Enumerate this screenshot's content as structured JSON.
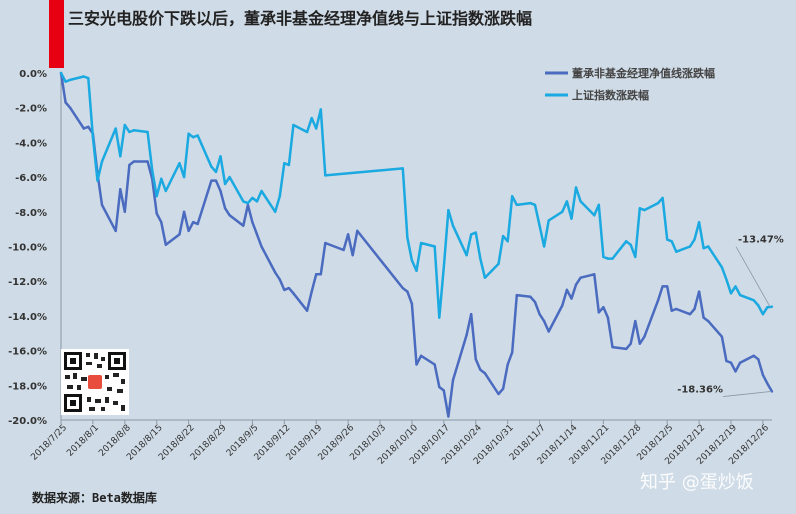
{
  "header": {
    "title": "三安光电股价下跌以后，董承非基金经理净值线与上证指数涨跌幅"
  },
  "footer": {
    "source": "数据来源：Beta数据库",
    "watermark": "知乎 @蛋炒饭"
  },
  "colors": {
    "background": "#cfdbe6",
    "accent_bar": "#e60012",
    "fund_line": "#4a6bbf",
    "index_line": "#1aa9e0"
  },
  "chart_data": {
    "type": "line",
    "title": "三安光电股价下跌以后，董承非基金经理净值线与上证指数涨跌幅",
    "xlabel": "",
    "ylabel": "",
    "ylim": [
      -20,
      0
    ],
    "yticks": [
      "0.0%",
      "-2.0%",
      "-4.0%",
      "-6.0%",
      "-8.0%",
      "-10.0%",
      "-12.0%",
      "-14.0%",
      "-16.0%",
      "-18.0%",
      "-20.0%"
    ],
    "xticks": [
      "2018/7/25",
      "2018/8/1",
      "2018/8/8",
      "2018/8/15",
      "2018/8/22",
      "2018/8/29",
      "2018/9/5",
      "2018/9/12",
      "2018/9/19",
      "2018/9/26",
      "2018/10/3",
      "2018/10/10",
      "2018/10/17",
      "2018/10/24",
      "2018/10/31",
      "2018/11/7",
      "2018/11/14",
      "2018/11/21",
      "2018/11/28",
      "2018/12/5",
      "2018/12/12",
      "2018/12/19",
      "2018/12/26"
    ],
    "x_domain": [
      "2018/7/25",
      "2018/12/28"
    ],
    "grid": false,
    "legend": "top-right",
    "series": [
      {
        "name": "董承非基金经理净值线涨跌幅",
        "color": "#4a6bbf",
        "end_label": "-18.36%",
        "points": [
          [
            "2018/7/25",
            0.0
          ],
          [
            "2018/7/26",
            -1.7
          ],
          [
            "2018/7/27",
            -2.0
          ],
          [
            "2018/7/30",
            -3.2
          ],
          [
            "2018/7/31",
            -3.1
          ],
          [
            "2018/8/1",
            -3.5
          ],
          [
            "2018/8/2",
            -5.8
          ],
          [
            "2018/8/3",
            -7.6
          ],
          [
            "2018/8/6",
            -9.1
          ],
          [
            "2018/8/7",
            -6.7
          ],
          [
            "2018/8/8",
            -8.0
          ],
          [
            "2018/8/9",
            -5.3
          ],
          [
            "2018/8/10",
            -5.1
          ],
          [
            "2018/8/13",
            -5.1
          ],
          [
            "2018/8/14",
            -6.1
          ],
          [
            "2018/8/15",
            -8.1
          ],
          [
            "2018/8/16",
            -8.6
          ],
          [
            "2018/8/17",
            -9.9
          ],
          [
            "2018/8/20",
            -9.3
          ],
          [
            "2018/8/21",
            -8.0
          ],
          [
            "2018/8/22",
            -9.1
          ],
          [
            "2018/8/23",
            -8.6
          ],
          [
            "2018/8/24",
            -8.7
          ],
          [
            "2018/8/27",
            -6.2
          ],
          [
            "2018/8/28",
            -6.2
          ],
          [
            "2018/8/29",
            -6.8
          ],
          [
            "2018/8/30",
            -7.8
          ],
          [
            "2018/8/31",
            -8.2
          ],
          [
            "2018/9/3",
            -8.8
          ],
          [
            "2018/9/4",
            -7.6
          ],
          [
            "2018/9/5",
            -8.6
          ],
          [
            "2018/9/6",
            -9.3
          ],
          [
            "2018/9/7",
            -10.0
          ],
          [
            "2018/9/10",
            -11.5
          ],
          [
            "2018/9/11",
            -11.9
          ],
          [
            "2018/9/12",
            -12.5
          ],
          [
            "2018/9/13",
            -12.4
          ],
          [
            "2018/9/14",
            -12.7
          ],
          [
            "2018/9/17",
            -13.7
          ],
          [
            "2018/9/18",
            -12.6
          ],
          [
            "2018/9/19",
            -11.6
          ],
          [
            "2018/9/20",
            -11.6
          ],
          [
            "2018/9/21",
            -9.8
          ],
          [
            "2018/9/25",
            -10.2
          ],
          [
            "2018/9/26",
            -9.3
          ],
          [
            "2018/9/27",
            -10.5
          ],
          [
            "2018/9/28",
            -9.1
          ],
          [
            "2018/10/8",
            -12.4
          ],
          [
            "2018/10/9",
            -12.6
          ],
          [
            "2018/10/10",
            -13.3
          ],
          [
            "2018/10/11",
            -16.8
          ],
          [
            "2018/10/12",
            -16.3
          ],
          [
            "2018/10/15",
            -16.8
          ],
          [
            "2018/10/16",
            -18.1
          ],
          [
            "2018/10/17",
            -18.3
          ],
          [
            "2018/10/18",
            -19.8
          ],
          [
            "2018/10/19",
            -17.7
          ],
          [
            "2018/10/22",
            -15.1
          ],
          [
            "2018/10/23",
            -13.9
          ],
          [
            "2018/10/24",
            -16.5
          ],
          [
            "2018/10/25",
            -17.1
          ],
          [
            "2018/10/26",
            -17.3
          ],
          [
            "2018/10/29",
            -18.5
          ],
          [
            "2018/10/30",
            -18.2
          ],
          [
            "2018/10/31",
            -16.8
          ],
          [
            "2018/11/1",
            -16.1
          ],
          [
            "2018/11/2",
            -12.8
          ],
          [
            "2018/11/5",
            -12.9
          ],
          [
            "2018/11/6",
            -13.2
          ],
          [
            "2018/11/7",
            -13.9
          ],
          [
            "2018/11/8",
            -14.3
          ],
          [
            "2018/11/9",
            -14.9
          ],
          [
            "2018/11/12",
            -13.4
          ],
          [
            "2018/11/13",
            -12.5
          ],
          [
            "2018/11/14",
            -13.0
          ],
          [
            "2018/11/15",
            -12.2
          ],
          [
            "2018/11/16",
            -11.8
          ],
          [
            "2018/11/19",
            -11.6
          ],
          [
            "2018/11/20",
            -13.8
          ],
          [
            "2018/11/21",
            -13.5
          ],
          [
            "2018/11/22",
            -14.1
          ],
          [
            "2018/11/23",
            -15.8
          ],
          [
            "2018/11/26",
            -15.9
          ],
          [
            "2018/11/27",
            -15.6
          ],
          [
            "2018/11/28",
            -14.3
          ],
          [
            "2018/11/29",
            -15.6
          ],
          [
            "2018/11/30",
            -15.2
          ],
          [
            "2018/12/3",
            -13.1
          ],
          [
            "2018/12/4",
            -12.3
          ],
          [
            "2018/12/5",
            -12.3
          ],
          [
            "2018/12/6",
            -13.7
          ],
          [
            "2018/12/7",
            -13.6
          ],
          [
            "2018/12/10",
            -13.9
          ],
          [
            "2018/12/11",
            -13.6
          ],
          [
            "2018/12/12",
            -12.6
          ],
          [
            "2018/12/13",
            -14.1
          ],
          [
            "2018/12/14",
            -14.3
          ],
          [
            "2018/12/17",
            -15.2
          ],
          [
            "2018/12/18",
            -16.6
          ],
          [
            "2018/12/19",
            -16.7
          ],
          [
            "2018/12/20",
            -17.2
          ],
          [
            "2018/12/21",
            -16.7
          ],
          [
            "2018/12/24",
            -16.3
          ],
          [
            "2018/12/25",
            -16.5
          ],
          [
            "2018/12/26",
            -17.4
          ],
          [
            "2018/12/27",
            -17.9
          ],
          [
            "2018/12/28",
            -18.36
          ]
        ]
      },
      {
        "name": "上证指数涨跌幅",
        "color": "#1aa9e0",
        "end_label": "-13.47%",
        "points": [
          [
            "2018/7/25",
            0.0
          ],
          [
            "2018/7/26",
            -0.5
          ],
          [
            "2018/7/27",
            -0.4
          ],
          [
            "2018/7/30",
            -0.2
          ],
          [
            "2018/7/31",
            -0.3
          ],
          [
            "2018/8/1",
            -3.7
          ],
          [
            "2018/8/2",
            -6.2
          ],
          [
            "2018/8/3",
            -5.1
          ],
          [
            "2018/8/6",
            -3.2
          ],
          [
            "2018/8/7",
            -4.8
          ],
          [
            "2018/8/8",
            -3.0
          ],
          [
            "2018/8/9",
            -3.4
          ],
          [
            "2018/8/10",
            -3.3
          ],
          [
            "2018/8/13",
            -3.4
          ],
          [
            "2018/8/14",
            -5.6
          ],
          [
            "2018/8/15",
            -7.1
          ],
          [
            "2018/8/16",
            -6.1
          ],
          [
            "2018/8/17",
            -6.8
          ],
          [
            "2018/8/20",
            -5.2
          ],
          [
            "2018/8/21",
            -6.0
          ],
          [
            "2018/8/22",
            -3.5
          ],
          [
            "2018/8/23",
            -3.7
          ],
          [
            "2018/8/24",
            -3.6
          ],
          [
            "2018/8/27",
            -5.4
          ],
          [
            "2018/8/28",
            -5.7
          ],
          [
            "2018/8/29",
            -4.8
          ],
          [
            "2018/8/30",
            -6.4
          ],
          [
            "2018/8/31",
            -6.0
          ],
          [
            "2018/9/3",
            -7.4
          ],
          [
            "2018/9/4",
            -7.5
          ],
          [
            "2018/9/5",
            -7.2
          ],
          [
            "2018/9/6",
            -7.4
          ],
          [
            "2018/9/7",
            -6.8
          ],
          [
            "2018/9/10",
            -8.0
          ],
          [
            "2018/9/11",
            -7.1
          ],
          [
            "2018/9/12",
            -5.2
          ],
          [
            "2018/9/13",
            -5.3
          ],
          [
            "2018/9/14",
            -3.0
          ],
          [
            "2018/9/17",
            -3.4
          ],
          [
            "2018/9/18",
            -2.6
          ],
          [
            "2018/9/19",
            -3.2
          ],
          [
            "2018/9/20",
            -2.1
          ],
          [
            "2018/9/21",
            -5.9
          ],
          [
            "2018/10/8",
            -5.5
          ],
          [
            "2018/10/9",
            -9.5
          ],
          [
            "2018/10/10",
            -10.8
          ],
          [
            "2018/10/11",
            -11.4
          ],
          [
            "2018/10/12",
            -9.8
          ],
          [
            "2018/10/15",
            -10.0
          ],
          [
            "2018/10/16",
            -14.1
          ],
          [
            "2018/10/17",
            -11.2
          ],
          [
            "2018/10/18",
            -7.9
          ],
          [
            "2018/10/19",
            -8.8
          ],
          [
            "2018/10/22",
            -10.5
          ],
          [
            "2018/10/23",
            -9.3
          ],
          [
            "2018/10/24",
            -9.2
          ],
          [
            "2018/10/25",
            -10.7
          ],
          [
            "2018/10/26",
            -11.8
          ],
          [
            "2018/10/29",
            -11.0
          ],
          [
            "2018/10/30",
            -9.4
          ],
          [
            "2018/10/31",
            -9.7
          ],
          [
            "2018/11/1",
            -7.1
          ],
          [
            "2018/11/2",
            -7.6
          ],
          [
            "2018/11/5",
            -7.5
          ],
          [
            "2018/11/6",
            -7.6
          ],
          [
            "2018/11/7",
            -8.8
          ],
          [
            "2018/11/8",
            -10.0
          ],
          [
            "2018/11/9",
            -8.5
          ],
          [
            "2018/11/12",
            -8.0
          ],
          [
            "2018/11/13",
            -7.4
          ],
          [
            "2018/11/14",
            -8.4
          ],
          [
            "2018/11/15",
            -6.6
          ],
          [
            "2018/11/16",
            -7.4
          ],
          [
            "2018/11/19",
            -8.2
          ],
          [
            "2018/11/20",
            -7.6
          ],
          [
            "2018/11/21",
            -10.6
          ],
          [
            "2018/11/22",
            -10.7
          ],
          [
            "2018/11/23",
            -10.7
          ],
          [
            "2018/11/26",
            -9.7
          ],
          [
            "2018/11/27",
            -9.9
          ],
          [
            "2018/11/28",
            -10.6
          ],
          [
            "2018/11/29",
            -7.8
          ],
          [
            "2018/11/30",
            -7.9
          ],
          [
            "2018/12/3",
            -7.5
          ],
          [
            "2018/12/4",
            -7.2
          ],
          [
            "2018/12/5",
            -9.6
          ],
          [
            "2018/12/6",
            -9.7
          ],
          [
            "2018/12/7",
            -10.3
          ],
          [
            "2018/12/10",
            -10.0
          ],
          [
            "2018/12/11",
            -9.6
          ],
          [
            "2018/12/12",
            -8.6
          ],
          [
            "2018/12/13",
            -10.1
          ],
          [
            "2018/12/14",
            -10.0
          ],
          [
            "2018/12/17",
            -11.2
          ],
          [
            "2018/12/18",
            -11.9
          ],
          [
            "2018/12/19",
            -12.7
          ],
          [
            "2018/12/20",
            -12.3
          ],
          [
            "2018/12/21",
            -12.8
          ],
          [
            "2018/12/24",
            -13.1
          ],
          [
            "2018/12/25",
            -13.4
          ],
          [
            "2018/12/26",
            -13.9
          ],
          [
            "2018/12/27",
            -13.5
          ],
          [
            "2018/12/28",
            -13.47
          ]
        ]
      }
    ]
  }
}
